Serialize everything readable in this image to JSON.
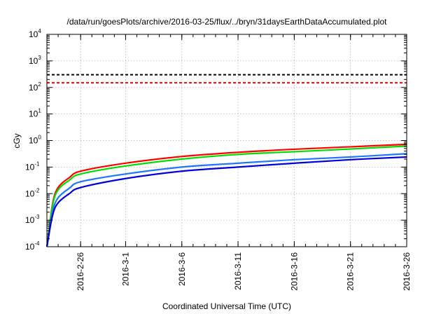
{
  "chart_data": {
    "type": "line",
    "title": "/data/run/goesPlots/archive/2016-03-25/flux/../bryn/31daysEarthDataAccumulated.plot",
    "xlabel": "Coordinated Universal Time (UTC)",
    "ylabel": "cGy",
    "yscale": "log",
    "ylim": [
      0.0001,
      10000
    ],
    "xlim": [
      "2016-02-23",
      "2016-03-26"
    ],
    "grid": true,
    "x_ticks": [
      "2016-2-26",
      "2016-3-1",
      "2016-3-6",
      "2016-3-11",
      "2016-3-16",
      "2016-3-21",
      "2016-3-26"
    ],
    "y_ticks": [
      {
        "base": "10",
        "exp": "-4"
      },
      {
        "base": "10",
        "exp": "-3"
      },
      {
        "base": "10",
        "exp": "-2"
      },
      {
        "base": "10",
        "exp": "-1"
      },
      {
        "base": "10",
        "exp": "0"
      },
      {
        "base": "10",
        "exp": "1"
      },
      {
        "base": "10",
        "exp": "2"
      },
      {
        "base": "10",
        "exp": "3"
      },
      {
        "base": "10",
        "exp": "4"
      }
    ],
    "reference_lines": [
      {
        "y": 300,
        "color": "#000000",
        "style": "dashed"
      },
      {
        "y": 150,
        "color": "#ff0000",
        "style": "dashed"
      }
    ],
    "series": [
      {
        "color": "#ff0000",
        "x": [
          "2016-02-23",
          "2016-02-23T12:00",
          "2016-02-24",
          "2016-02-25",
          "2016-02-26",
          "2016-03-01",
          "2016-03-06",
          "2016-03-11",
          "2016-03-16",
          "2016-03-21",
          "2016-03-26"
        ],
        "values": [
          0.0001,
          0.004,
          0.017,
          0.04,
          0.07,
          0.14,
          0.25,
          0.36,
          0.47,
          0.58,
          0.72
        ]
      },
      {
        "color": "#00dd00",
        "x": [
          "2016-02-23",
          "2016-02-23T12:00",
          "2016-02-24",
          "2016-02-25",
          "2016-02-26",
          "2016-03-01",
          "2016-03-06",
          "2016-03-11",
          "2016-03-16",
          "2016-03-21",
          "2016-03-26"
        ],
        "values": [
          0.0001,
          0.0035,
          0.014,
          0.032,
          0.055,
          0.11,
          0.2,
          0.3,
          0.38,
          0.48,
          0.62
        ]
      },
      {
        "color": "#1e78ff",
        "x": [
          "2016-02-23",
          "2016-02-23T12:00",
          "2016-02-24",
          "2016-02-25",
          "2016-02-26",
          "2016-03-01",
          "2016-03-06",
          "2016-03-11",
          "2016-03-16",
          "2016-03-21",
          "2016-03-26"
        ],
        "values": [
          0.0001,
          0.002,
          0.007,
          0.016,
          0.028,
          0.055,
          0.1,
          0.14,
          0.19,
          0.24,
          0.32
        ]
      },
      {
        "color": "#0000dd",
        "x": [
          "2016-02-23",
          "2016-02-23T12:00",
          "2016-02-24",
          "2016-02-25",
          "2016-02-26",
          "2016-03-01",
          "2016-03-06",
          "2016-03-11",
          "2016-03-16",
          "2016-03-21",
          "2016-03-26"
        ],
        "values": [
          0.0001,
          0.0015,
          0.0045,
          0.01,
          0.017,
          0.037,
          0.07,
          0.1,
          0.14,
          0.19,
          0.24
        ]
      }
    ]
  }
}
